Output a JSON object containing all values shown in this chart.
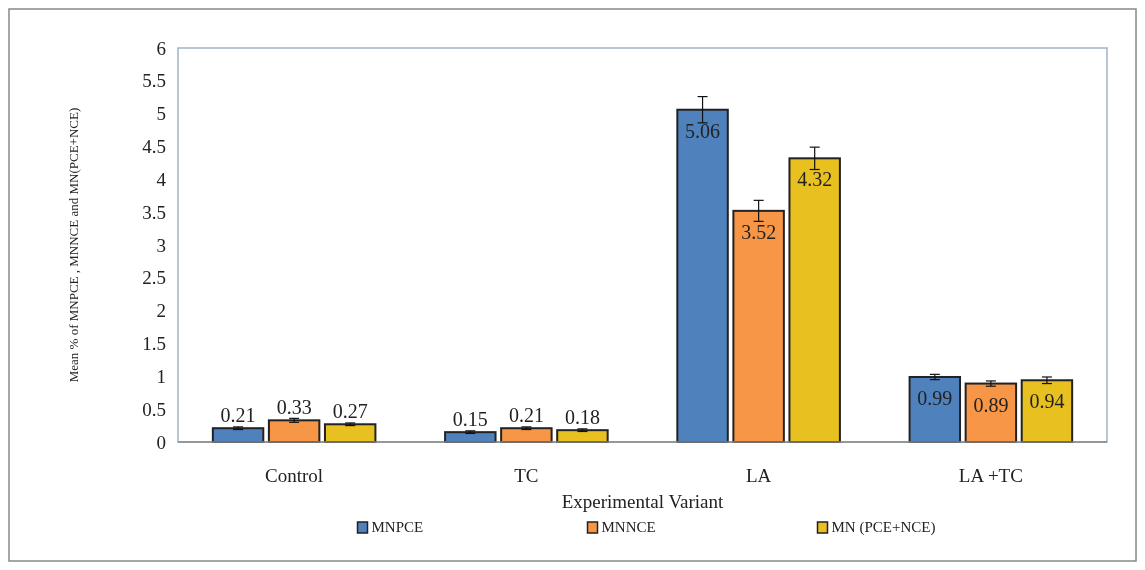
{
  "chart_data": {
    "type": "bar",
    "xlabel": "Experimental Variant",
    "ylabel": "Mean % of MNPCE , MNNCE and MN(PCE+NCE)",
    "categories": [
      "Control",
      "TC",
      "LA",
      "LA +TC"
    ],
    "series": [
      {
        "name": "MNPCE",
        "color": "#4f81bd",
        "values": [
          0.21,
          0.15,
          5.06,
          0.99
        ],
        "errors": [
          0.02,
          0.02,
          0.2,
          0.04
        ]
      },
      {
        "name": "MNNCE",
        "color": "#f79646",
        "values": [
          0.33,
          0.21,
          3.52,
          0.89
        ],
        "errors": [
          0.03,
          0.02,
          0.16,
          0.04
        ]
      },
      {
        "name": "MN (PCE+NCE)",
        "color": "#e8c020",
        "values": [
          0.27,
          0.18,
          4.32,
          0.94
        ],
        "errors": [
          0.02,
          0.02,
          0.17,
          0.05
        ]
      }
    ],
    "ylim": [
      0,
      6
    ],
    "yticks": [
      0,
      0.5,
      1,
      1.5,
      2,
      2.5,
      3,
      3.5,
      4,
      4.5,
      5,
      5.5,
      6
    ],
    "grid": false,
    "legend": "bottom",
    "data_labels": true
  }
}
